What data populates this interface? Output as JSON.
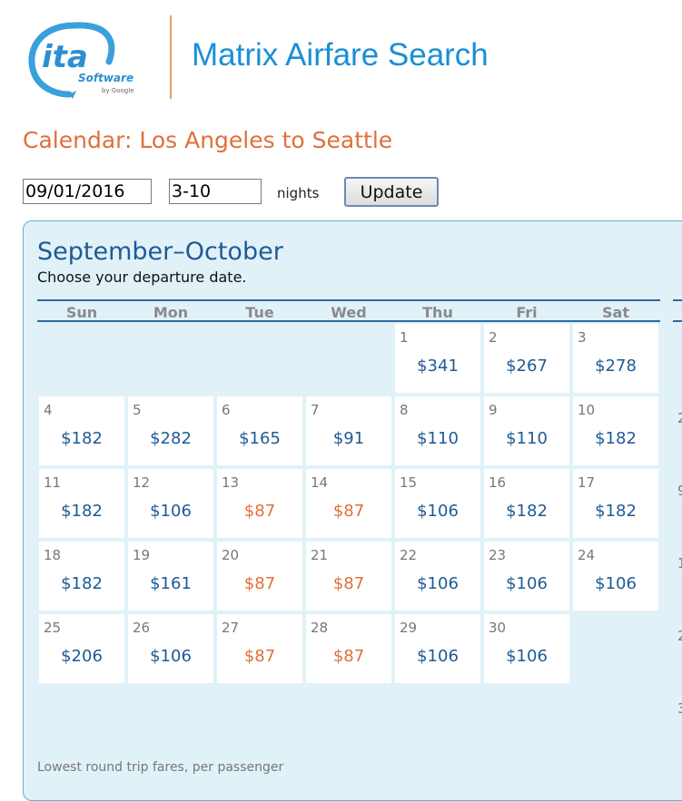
{
  "header": {
    "app_title": "Matrix Airfare Search",
    "logo": {
      "main": "ita",
      "sub": "Software",
      "by": "by Google"
    }
  },
  "page_title": "Calendar: Los Angeles to Seattle",
  "controls": {
    "date_value": "09/01/2016",
    "nights_value": "3-10",
    "nights_label": "nights",
    "update_label": "Update"
  },
  "calendar": {
    "month_title": "September–October",
    "subtitle": "Choose your departure date.",
    "weekdays": [
      "Sun",
      "Mon",
      "Tue",
      "Wed",
      "Thu",
      "Fri",
      "Sat"
    ],
    "first_weekday_index": 4,
    "days": [
      {
        "day": "1",
        "fare": "$341"
      },
      {
        "day": "2",
        "fare": "$267"
      },
      {
        "day": "3",
        "fare": "$278"
      },
      {
        "day": "4",
        "fare": "$182"
      },
      {
        "day": "5",
        "fare": "$282"
      },
      {
        "day": "6",
        "fare": "$165"
      },
      {
        "day": "7",
        "fare": "$91"
      },
      {
        "day": "8",
        "fare": "$110"
      },
      {
        "day": "9",
        "fare": "$110"
      },
      {
        "day": "10",
        "fare": "$182"
      },
      {
        "day": "11",
        "fare": "$182"
      },
      {
        "day": "12",
        "fare": "$106"
      },
      {
        "day": "13",
        "fare": "$87",
        "cheapest": true
      },
      {
        "day": "14",
        "fare": "$87",
        "cheapest": true
      },
      {
        "day": "15",
        "fare": "$106"
      },
      {
        "day": "16",
        "fare": "$182"
      },
      {
        "day": "17",
        "fare": "$182"
      },
      {
        "day": "18",
        "fare": "$182"
      },
      {
        "day": "19",
        "fare": "$161"
      },
      {
        "day": "20",
        "fare": "$87",
        "cheapest": true
      },
      {
        "day": "21",
        "fare": "$87",
        "cheapest": true
      },
      {
        "day": "22",
        "fare": "$106"
      },
      {
        "day": "23",
        "fare": "$106"
      },
      {
        "day": "24",
        "fare": "$106"
      },
      {
        "day": "25",
        "fare": "$206"
      },
      {
        "day": "26",
        "fare": "$106"
      },
      {
        "day": "27",
        "fare": "$87",
        "cheapest": true
      },
      {
        "day": "28",
        "fare": "$87",
        "cheapest": true
      },
      {
        "day": "29",
        "fare": "$106"
      },
      {
        "day": "30",
        "fare": "$106"
      }
    ],
    "next_month_partial_days": [
      "2",
      "9",
      "1",
      "2",
      "3"
    ],
    "footnote": "Lowest round trip fares, per passenger"
  },
  "colors": {
    "fare": "#1f5a94",
    "cheapest_fare": "#e0703a",
    "panel_bg": "#e1f1f8",
    "accent_blue": "#1a8fd6",
    "accent_orange": "#e0703a"
  }
}
